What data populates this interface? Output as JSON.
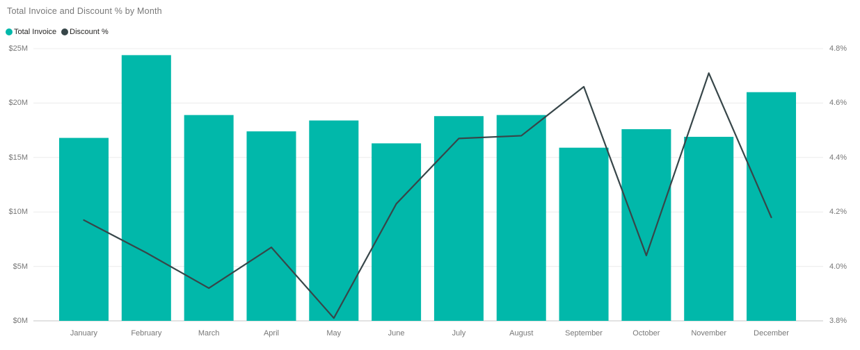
{
  "header": {
    "title": "Total Invoice and Discount % by Month"
  },
  "legend": [
    {
      "label": "Total Invoice",
      "color": "#01B8AA",
      "marker": "circle"
    },
    {
      "label": "Discount %",
      "color": "#374649",
      "marker": "circle"
    }
  ],
  "chart_data": {
    "type": "combo-bar-line",
    "title": "Total Invoice and Discount % by Month",
    "categories": [
      "January",
      "February",
      "March",
      "April",
      "May",
      "June",
      "July",
      "August",
      "September",
      "October",
      "November",
      "December"
    ],
    "series": [
      {
        "name": "Total Invoice",
        "type": "bar",
        "axis": "left",
        "unit": "$M",
        "color": "#01B8AA",
        "values": [
          16.8,
          24.4,
          18.9,
          17.4,
          18.4,
          16.3,
          18.8,
          18.9,
          15.9,
          17.6,
          16.9,
          21.0
        ]
      },
      {
        "name": "Discount %",
        "type": "line",
        "axis": "right",
        "unit": "%",
        "color": "#374649",
        "values": [
          4.17,
          4.05,
          3.92,
          4.07,
          3.81,
          4.23,
          4.47,
          4.48,
          4.66,
          4.04,
          4.71,
          4.18
        ]
      }
    ],
    "y_left": {
      "ticks": [
        "$0M",
        "$5M",
        "$10M",
        "$15M",
        "$20M",
        "$25M"
      ],
      "lim": [
        0,
        25
      ]
    },
    "y_right": {
      "ticks": [
        "3.8%",
        "4.0%",
        "4.2%",
        "4.4%",
        "4.6%",
        "4.8%"
      ],
      "lim": [
        3.8,
        4.8
      ]
    },
    "grid": true,
    "legend_position": "top-left"
  },
  "colors": {
    "bar": "#01B8AA",
    "line": "#374649",
    "gridline": "#ECECEC",
    "baseline": "#E2E2E2",
    "axis_label": "#777777",
    "title": "#787878",
    "legend_text": "#252423",
    "background": "#FFFFFF"
  }
}
